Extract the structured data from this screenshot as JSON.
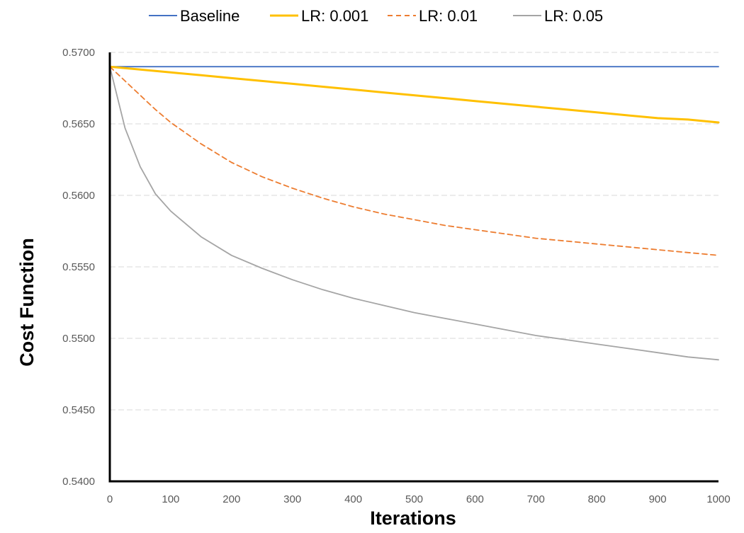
{
  "chart_data": {
    "type": "line",
    "title": "",
    "xlabel": "Iterations",
    "ylabel": "Cost Function",
    "xlim": [
      0,
      1000
    ],
    "ylim": [
      0.54,
      0.57
    ],
    "x_ticks": [
      "0",
      "100",
      "200",
      "300",
      "400",
      "500",
      "600",
      "700",
      "800",
      "900",
      "1000"
    ],
    "y_ticks": [
      "0.5400",
      "0.5450",
      "0.5500",
      "0.5550",
      "0.5600",
      "0.5650",
      "0.5700"
    ],
    "grid": "horizontal-dashed",
    "legend_position": "top",
    "x": [
      0,
      25,
      50,
      75,
      100,
      150,
      200,
      250,
      300,
      350,
      400,
      450,
      500,
      550,
      600,
      650,
      700,
      750,
      800,
      850,
      900,
      950,
      1000
    ],
    "series": [
      {
        "name": "Baseline",
        "color": "#4472C4",
        "style": "solid",
        "values": [
          0.569,
          0.569,
          0.569,
          0.569,
          0.569,
          0.569,
          0.569,
          0.569,
          0.569,
          0.569,
          0.569,
          0.569,
          0.569,
          0.569,
          0.569,
          0.569,
          0.569,
          0.569,
          0.569,
          0.569,
          0.569,
          0.569,
          0.569
        ]
      },
      {
        "name": "LR: 0.001",
        "color": "#FFC000",
        "style": "solid-thick",
        "values": [
          0.569,
          0.5689,
          0.5688,
          0.5687,
          0.5686,
          0.5684,
          0.5682,
          0.568,
          0.5678,
          0.5676,
          0.5674,
          0.5672,
          0.567,
          0.5668,
          0.5666,
          0.5664,
          0.5662,
          0.566,
          0.5658,
          0.5656,
          0.5654,
          0.5653,
          0.5651
        ]
      },
      {
        "name": "LR: 0.01",
        "color": "#ED7D31",
        "style": "dashed",
        "values": [
          0.569,
          0.568,
          0.567,
          0.566,
          0.5651,
          0.5636,
          0.5623,
          0.5613,
          0.5605,
          0.5598,
          0.5592,
          0.5587,
          0.5583,
          0.5579,
          0.5576,
          0.5573,
          0.557,
          0.5568,
          0.5566,
          0.5564,
          0.5562,
          0.556,
          0.5558
        ]
      },
      {
        "name": "LR: 0.05",
        "color": "#A5A5A5",
        "style": "solid",
        "values": [
          0.569,
          0.5647,
          0.562,
          0.5601,
          0.5589,
          0.5571,
          0.5558,
          0.5549,
          0.5541,
          0.5534,
          0.5528,
          0.5523,
          0.5518,
          0.5514,
          0.551,
          0.5506,
          0.5502,
          0.5499,
          0.5496,
          0.5493,
          0.549,
          0.5487,
          0.5485
        ]
      }
    ]
  }
}
